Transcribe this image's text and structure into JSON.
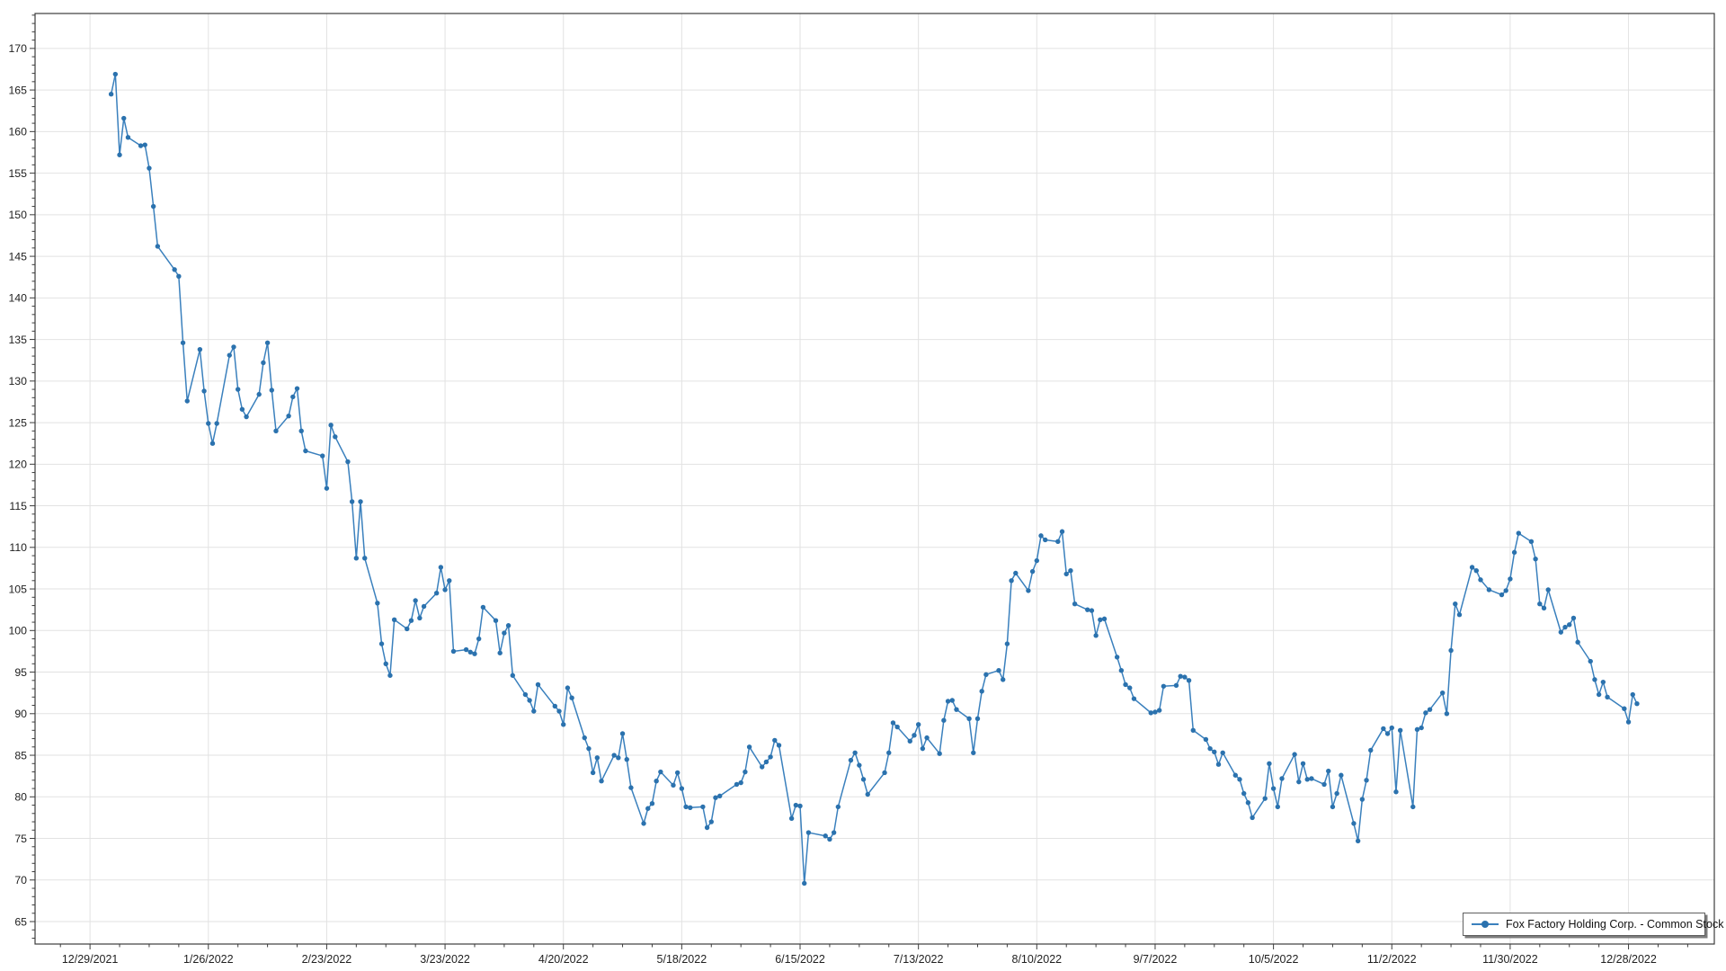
{
  "window": {
    "background": "#ffffff"
  },
  "legend": {
    "label": "Fox Factory Holding Corp. - Common Stock"
  },
  "chart_data": {
    "type": "line",
    "title": "",
    "xlabel": "",
    "ylabel": "",
    "legend_position": "bottom-right",
    "grid": {
      "show": true,
      "color": "#e2e2e2"
    },
    "axis_color": "#3c3c3c",
    "text_color": "#1f1f1f",
    "background": "#ffffff",
    "x_axis": {
      "domain_days": [
        -13,
        384.3
      ],
      "minor_tick_every_days": 7,
      "tick_day_offsets": [
        0,
        28,
        56,
        84,
        112,
        140,
        168,
        196,
        224,
        252,
        280,
        308,
        336,
        364
      ],
      "tick_labels": [
        "12/29/2021",
        "1/26/2022",
        "2/23/2022",
        "3/23/2022",
        "4/20/2022",
        "5/18/2022",
        "6/15/2022",
        "7/13/2022",
        "8/10/2022",
        "9/7/2022",
        "10/5/2022",
        "11/2/2022",
        "11/30/2022",
        "12/28/2022"
      ]
    },
    "y_axis": {
      "domain": [
        62.3,
        174.2
      ],
      "minor_step": 1,
      "ticks": [
        65,
        70,
        75,
        80,
        85,
        90,
        95,
        100,
        105,
        110,
        115,
        120,
        125,
        130,
        135,
        140,
        145,
        150,
        155,
        160,
        165,
        170
      ]
    },
    "series": [
      {
        "name": "Fox Factory Holding Corp. - Common Stock",
        "color_line": "#3a80bd",
        "color_marker": "#2b72ae",
        "marker_radius": 2.7,
        "day_offsets": [
          5,
          6,
          7,
          8,
          9,
          12,
          13,
          14,
          15,
          16,
          20,
          21,
          22,
          23,
          26,
          27,
          28,
          29,
          30,
          33,
          34,
          35,
          36,
          37,
          40,
          41,
          42,
          43,
          44,
          47,
          48,
          49,
          50,
          51,
          55,
          56,
          57,
          58,
          61,
          62,
          63,
          64,
          65,
          68,
          69,
          70,
          71,
          72,
          75,
          76,
          77,
          78,
          79,
          82,
          83,
          84,
          85,
          86,
          89,
          90,
          91,
          92,
          93,
          96,
          97,
          98,
          99,
          100,
          103,
          104,
          105,
          106,
          110,
          111,
          112,
          113,
          114,
          117,
          118,
          119,
          120,
          121,
          124,
          125,
          126,
          127,
          128,
          131,
          132,
          133,
          134,
          135,
          138,
          139,
          140,
          141,
          142,
          145,
          146,
          147,
          148,
          149,
          153,
          154,
          155,
          156,
          159,
          160,
          161,
          162,
          163,
          166,
          167,
          168,
          169,
          170,
          174,
          175,
          176,
          177,
          180,
          181,
          182,
          183,
          184,
          188,
          189,
          190,
          191,
          194,
          195,
          196,
          197,
          198,
          201,
          202,
          203,
          204,
          205,
          208,
          209,
          210,
          211,
          212,
          215,
          216,
          217,
          218,
          219,
          222,
          223,
          224,
          225,
          226,
          229,
          230,
          231,
          232,
          233,
          236,
          237,
          238,
          239,
          240,
          243,
          244,
          245,
          246,
          247,
          251,
          252,
          253,
          254,
          257,
          258,
          259,
          260,
          261,
          264,
          265,
          266,
          267,
          268,
          271,
          272,
          273,
          274,
          275,
          278,
          279,
          280,
          281,
          282,
          285,
          286,
          287,
          288,
          289,
          292,
          293,
          294,
          295,
          296,
          299,
          300,
          301,
          302,
          303,
          306,
          307,
          308,
          309,
          310,
          313,
          314,
          315,
          316,
          317,
          320,
          321,
          322,
          323,
          324,
          327,
          328,
          329,
          331,
          334,
          335,
          336,
          337,
          338,
          341,
          342,
          343,
          344,
          345,
          348,
          349,
          350,
          351,
          352,
          355,
          356,
          357,
          358,
          359,
          363,
          364,
          365,
          366
        ],
        "values": [
          164.5,
          166.9,
          157.2,
          161.6,
          159.3,
          158.3,
          158.4,
          155.6,
          151.0,
          146.2,
          143.4,
          142.6,
          134.6,
          127.6,
          133.8,
          128.8,
          124.9,
          122.5,
          124.9,
          133.1,
          134.1,
          129.0,
          126.6,
          125.7,
          128.4,
          132.2,
          134.6,
          128.9,
          124.0,
          125.8,
          128.1,
          129.1,
          124.0,
          121.6,
          121.0,
          117.1,
          124.7,
          123.3,
          120.3,
          115.5,
          108.7,
          115.5,
          108.7,
          103.3,
          98.4,
          96.0,
          94.6,
          101.3,
          100.2,
          101.2,
          103.6,
          101.5,
          102.9,
          104.5,
          107.6,
          104.9,
          106.0,
          97.5,
          97.7,
          97.4,
          97.2,
          99.0,
          102.8,
          101.2,
          97.3,
          99.7,
          100.6,
          94.6,
          92.3,
          91.6,
          90.3,
          93.5,
          90.9,
          90.3,
          88.7,
          93.1,
          91.9,
          87.1,
          85.8,
          82.9,
          84.7,
          81.9,
          85.0,
          84.7,
          87.6,
          84.5,
          81.1,
          76.8,
          78.6,
          79.2,
          81.9,
          83.0,
          81.4,
          82.9,
          81.0,
          78.8,
          78.7,
          78.8,
          76.3,
          77.0,
          79.9,
          80.1,
          81.5,
          81.7,
          83.0,
          86.0,
          83.6,
          84.2,
          84.8,
          86.8,
          86.2,
          77.4,
          79.0,
          78.9,
          69.6,
          75.7,
          75.3,
          74.9,
          75.7,
          78.8,
          84.4,
          85.3,
          83.8,
          82.1,
          80.3,
          82.9,
          85.3,
          88.9,
          88.4,
          86.7,
          87.4,
          88.7,
          85.8,
          87.1,
          85.2,
          89.2,
          91.5,
          91.6,
          90.5,
          89.4,
          85.3,
          89.4,
          92.7,
          94.7,
          95.2,
          94.1,
          98.4,
          106.0,
          106.9,
          104.8,
          107.1,
          108.4,
          111.4,
          110.9,
          110.7,
          111.9,
          106.8,
          107.2,
          103.2,
          102.5,
          102.4,
          99.4,
          101.3,
          101.4,
          96.8,
          95.2,
          93.5,
          93.1,
          91.8,
          90.1,
          90.2,
          90.4,
          93.3,
          93.4,
          94.5,
          94.4,
          94.0,
          88.0,
          86.9,
          85.8,
          85.4,
          83.9,
          85.3,
          82.6,
          82.1,
          80.4,
          79.3,
          77.5,
          79.8,
          84.0,
          81.0,
          78.8,
          82.2,
          85.1,
          81.8,
          84.0,
          82.1,
          82.2,
          81.5,
          83.1,
          78.8,
          80.4,
          82.6,
          76.8,
          74.7,
          79.7,
          82.0,
          85.6,
          88.2,
          87.6,
          88.3,
          80.6,
          88.0,
          78.8,
          88.1,
          88.3,
          90.1,
          90.5,
          92.5,
          90.0,
          97.6,
          103.2,
          101.9,
          107.6,
          107.2,
          106.1,
          104.9,
          104.3,
          104.8,
          106.2,
          109.4,
          111.7,
          110.7,
          108.6,
          103.2,
          102.7,
          104.9,
          99.8,
          100.4,
          100.7,
          101.5,
          98.6,
          96.3,
          94.1,
          92.3,
          93.8,
          92.0,
          90.6,
          89.0,
          92.3,
          91.2
        ]
      }
    ]
  }
}
